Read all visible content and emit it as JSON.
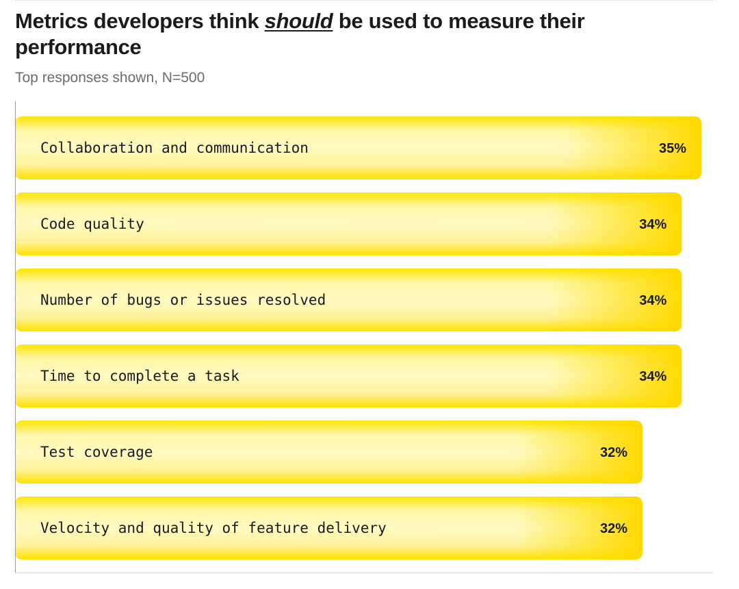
{
  "header": {
    "title_before": "Metrics developers think ",
    "title_emphasis": "should",
    "title_after": " be used to measure their performance",
    "subtitle": "Top responses shown, N=500"
  },
  "colors": {
    "bar_fill": "#ffe000",
    "bar_highlight": "#fff7a0",
    "bar_edge": "#f2cf00",
    "axis": "#999999",
    "text": "#1a1a1a"
  },
  "chart_data": {
    "type": "bar",
    "orientation": "horizontal",
    "categories": [
      "Collaboration and communication",
      "Code quality",
      "Number of bugs or issues resolved",
      "Time to complete a task",
      "Test coverage",
      "Velocity and quality of feature delivery"
    ],
    "values": [
      35,
      34,
      34,
      34,
      32,
      32
    ],
    "value_labels": [
      "35%",
      "34%",
      "34%",
      "34%",
      "32%",
      "32%"
    ],
    "unit": "%",
    "title": "Metrics developers think should be used to measure their performance",
    "subtitle": "Top responses shown, N=500",
    "xlabel": "",
    "ylabel": "",
    "grid": false,
    "legend": "none"
  }
}
